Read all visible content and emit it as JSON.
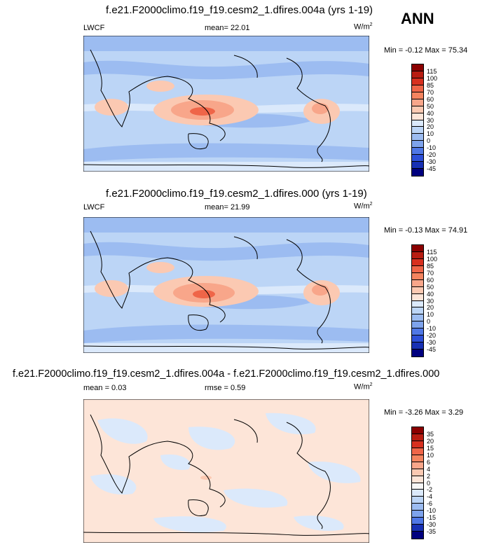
{
  "season": "ANN",
  "chart_data": [
    {
      "type": "heatmap",
      "title": "f.e21.F2000climo.f19_f19.cesm2_1.dfires.004a (yrs 1-19)",
      "variable": "LWCF",
      "stat_text": "mean=  22.01",
      "units": "W/m",
      "units_exp": "2",
      "minmax_text": "Min =  -0.12 Max =  75.34",
      "min": -0.12,
      "max": 75.34,
      "colorbar": {
        "labels": [
          "115",
          "100",
          "85",
          "70",
          "60",
          "50",
          "40",
          "30",
          "20",
          "10",
          "0",
          "-10",
          "-20",
          "-30",
          "-45"
        ],
        "colors": [
          "#8b0000",
          "#b81d12",
          "#d7301f",
          "#ef6548",
          "#f4845f",
          "#f8a68a",
          "#fbc9b2",
          "#fde5d8",
          "#dbe9fb",
          "#bcd5f6",
          "#9cbcf1",
          "#7ea3ec",
          "#4f77e6",
          "#2d4fd8",
          "#1730b4",
          "#00007f"
        ]
      }
    },
    {
      "type": "heatmap",
      "title": "f.e21.F2000climo.f19_f19.cesm2_1.dfires.000 (yrs 1-19)",
      "variable": "LWCF",
      "stat_text": "mean=  21.99",
      "units": "W/m",
      "units_exp": "2",
      "minmax_text": "Min =  -0.13 Max =  74.91",
      "min": -0.13,
      "max": 74.91,
      "colorbar": {
        "labels": [
          "115",
          "100",
          "85",
          "70",
          "60",
          "50",
          "40",
          "30",
          "20",
          "10",
          "0",
          "-10",
          "-20",
          "-30",
          "-45"
        ],
        "colors": [
          "#8b0000",
          "#b81d12",
          "#d7301f",
          "#ef6548",
          "#f4845f",
          "#f8a68a",
          "#fbc9b2",
          "#fde5d8",
          "#dbe9fb",
          "#bcd5f6",
          "#9cbcf1",
          "#7ea3ec",
          "#4f77e6",
          "#2d4fd8",
          "#1730b4",
          "#00007f"
        ]
      }
    },
    {
      "type": "heatmap",
      "title": "f.e21.F2000climo.f19_f19.cesm2_1.dfires.004a - f.e21.F2000climo.f19_f19.cesm2_1.dfires.000",
      "stat_text": "mean =   0.03",
      "rmse_text": "rmse =   0.59",
      "units": "W/m",
      "units_exp": "2",
      "minmax_text": "Min =  -3.26 Max =   3.29",
      "min": -3.26,
      "max": 3.29,
      "colorbar": {
        "labels": [
          "35",
          "20",
          "15",
          "10",
          "6",
          "4",
          "2",
          "0",
          "-2",
          "-4",
          "-6",
          "-10",
          "-15",
          "-30",
          "-35"
        ],
        "colors": [
          "#8b0000",
          "#b81d12",
          "#d7301f",
          "#ef6548",
          "#f4845f",
          "#f8a68a",
          "#fbc9b2",
          "#fde5d8",
          "#f7f7f7",
          "#dbe9fb",
          "#bcd5f6",
          "#9cbcf1",
          "#7ea3ec",
          "#4f77e6",
          "#1730b4",
          "#00007f"
        ]
      }
    }
  ]
}
